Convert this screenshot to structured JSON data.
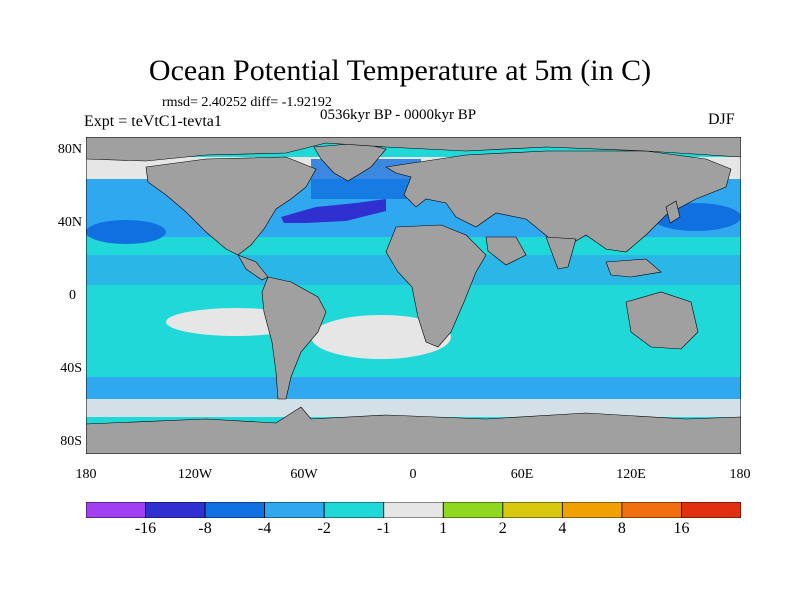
{
  "header": {
    "title": "Ocean Potential Temperature at 5m (in C)",
    "stats": "rmsd= 2.40252 diff= -1.92192",
    "period": "0536kyr BP - 0000kyr BP",
    "experiment": "Expt = teVtC1-tevta1",
    "season": "DJF"
  },
  "map": {
    "y_ticks": [
      "80N",
      "40N",
      "0",
      "40S",
      "80S"
    ],
    "x_ticks": [
      "180",
      "120W",
      "60W",
      "0",
      "60E",
      "120E",
      "180"
    ],
    "land_color": "#a0a0a0"
  },
  "colorbar": {
    "colors": [
      "#a040f0",
      "#3030d0",
      "#1070e0",
      "#30a8ef",
      "#20d8d8",
      "#e6e6e6",
      "#90d820",
      "#d8c810",
      "#f0a000",
      "#f07010",
      "#e03010"
    ],
    "labels": [
      "-16",
      "-8",
      "-4",
      "-2",
      "-1",
      "1",
      "2",
      "4",
      "8",
      "16"
    ]
  }
}
